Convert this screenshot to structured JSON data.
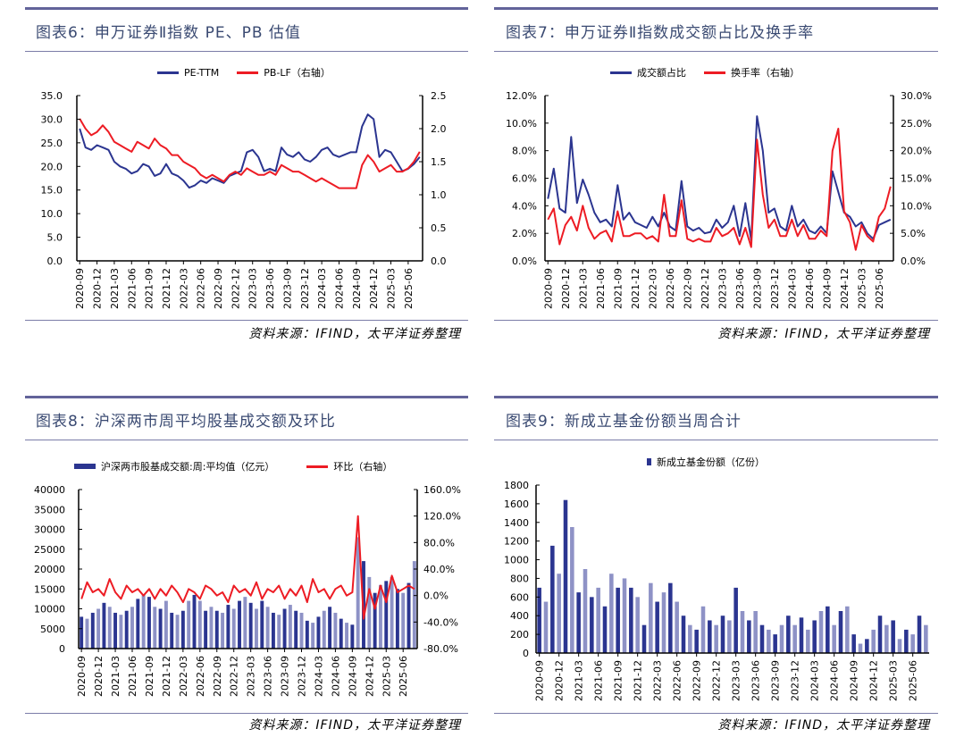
{
  "colors": {
    "navy": "#2b3590",
    "red": "#ed1c24",
    "navy_light": "#8e92c6",
    "rule": "#62639a",
    "title": "#3a4a72"
  },
  "panels": [
    {
      "title": "图表6：申万证券Ⅱ指数 PE、PB 估值",
      "legend": [
        "PE-TTM",
        "PB-LF（右轴）"
      ],
      "source": "资料来源：IFIND，太平洋证券整理"
    },
    {
      "title": "图表7：申万证券Ⅱ指数成交额占比及换手率",
      "legend": [
        "成交额占比",
        "换手率（右轴）"
      ],
      "source": "资料来源：IFIND，太平洋证券整理"
    },
    {
      "title": "图表8：沪深两市周平均股基成交额及环比",
      "legend": [
        "沪深两市股基成交额:周:平均值（亿元）",
        "环比（右轴）"
      ],
      "source": "资料来源：IFIND，太平洋证券整理"
    },
    {
      "title": "图表9：新成立基金份额当周合计",
      "legend": [
        "新成立基金份额（亿份）"
      ],
      "source": "资料来源：IFIND，太平洋证券整理"
    }
  ],
  "chart_data": [
    {
      "type": "line",
      "x_labels": [
        "2020-09",
        "2020-12",
        "2021-03",
        "2021-06",
        "2021-09",
        "2021-12",
        "2022-03",
        "2022-06",
        "2022-09",
        "2022-12",
        "2023-03",
        "2023-06",
        "2023-09",
        "2023-12",
        "2024-03",
        "2024-06",
        "2024-09",
        "2024-12",
        "2025-03",
        "2025-06"
      ],
      "y_left": {
        "ticks": [
          "35.0",
          "30.0",
          "25.0",
          "20.0",
          "15.0",
          "10.0",
          "5.0",
          "0.0"
        ],
        "range": [
          0,
          35
        ]
      },
      "y_right": {
        "ticks": [
          "2.5",
          "2.0",
          "1.5",
          "1.0",
          "0.5",
          "0.0"
        ],
        "range": [
          0,
          2.5
        ]
      },
      "series": [
        {
          "name": "PE-TTM",
          "axis": "left",
          "color": "#2b3590",
          "values": [
            28,
            24,
            23.5,
            24.5,
            24,
            23.5,
            21,
            20,
            19.5,
            18.5,
            19,
            20.5,
            20,
            18,
            18.5,
            20.5,
            18.5,
            18,
            17,
            15.5,
            16,
            17,
            16.5,
            17.5,
            17,
            16.5,
            18,
            18.5,
            19,
            23,
            23.5,
            22,
            19,
            19.5,
            19,
            24,
            22.5,
            22,
            23,
            21.5,
            21,
            22,
            23.5,
            24,
            22.5,
            22,
            22.5,
            23,
            23,
            28.5,
            31,
            30,
            22,
            23.5,
            23,
            21,
            19,
            19.5,
            20.5,
            22
          ]
        },
        {
          "name": "PB-LF（右轴）",
          "axis": "right",
          "color": "#ed1c24",
          "values": [
            2.15,
            2.0,
            1.9,
            1.95,
            2.05,
            1.95,
            1.8,
            1.75,
            1.7,
            1.65,
            1.8,
            1.75,
            1.7,
            1.85,
            1.75,
            1.7,
            1.6,
            1.6,
            1.5,
            1.45,
            1.4,
            1.3,
            1.25,
            1.3,
            1.25,
            1.2,
            1.3,
            1.35,
            1.3,
            1.4,
            1.35,
            1.3,
            1.3,
            1.35,
            1.3,
            1.45,
            1.4,
            1.35,
            1.35,
            1.3,
            1.25,
            1.2,
            1.25,
            1.2,
            1.15,
            1.1,
            1.1,
            1.1,
            1.1,
            1.45,
            1.6,
            1.5,
            1.35,
            1.4,
            1.45,
            1.35,
            1.35,
            1.4,
            1.5,
            1.65
          ]
        }
      ]
    },
    {
      "type": "line",
      "x_labels": [
        "2020-09",
        "2020-12",
        "2021-03",
        "2021-06",
        "2021-09",
        "2021-12",
        "2022-03",
        "2022-06",
        "2022-09",
        "2022-12",
        "2023-03",
        "2023-06",
        "2023-09",
        "2023-12",
        "2024-03",
        "2024-06",
        "2024-09",
        "2024-12",
        "2025-03",
        "2025-06"
      ],
      "y_left": {
        "ticks": [
          "12.0%",
          "10.0%",
          "8.0%",
          "6.0%",
          "4.0%",
          "2.0%",
          "0.0%"
        ],
        "range": [
          0,
          12
        ]
      },
      "y_right": {
        "ticks": [
          "30.0%",
          "25.0%",
          "20.0%",
          "15.0%",
          "10.0%",
          "5.0%",
          "0.0%"
        ],
        "range": [
          0,
          30
        ]
      },
      "series": [
        {
          "name": "成交额占比",
          "axis": "left",
          "color": "#2b3590",
          "values": [
            4.5,
            6.7,
            3.8,
            3.5,
            9.0,
            4.2,
            5.9,
            4.8,
            3.5,
            2.8,
            3.0,
            2.5,
            5.5,
            3.0,
            3.5,
            2.8,
            2.6,
            2.4,
            3.2,
            2.5,
            3.5,
            2.5,
            2.2,
            5.8,
            2.5,
            2.2,
            2.4,
            2.0,
            2.1,
            3.0,
            2.4,
            2.8,
            4.0,
            1.8,
            4.2,
            1.5,
            10.5,
            8.0,
            3.5,
            3.8,
            2.5,
            2.2,
            4.0,
            2.5,
            3.0,
            2.2,
            2.0,
            2.5,
            2.0,
            6.5,
            5.0,
            3.5,
            3.2,
            2.5,
            2.8,
            2.0,
            1.6,
            2.6,
            2.8,
            3.0
          ]
        },
        {
          "name": "换手率（右轴）",
          "axis": "right",
          "color": "#ed1c24",
          "values": [
            7.5,
            9.5,
            3.0,
            6.5,
            8.0,
            5.5,
            10.0,
            6.0,
            4.0,
            5.0,
            5.5,
            3.5,
            9.0,
            4.5,
            4.5,
            5.0,
            5.0,
            4.0,
            4.5,
            3.5,
            12.0,
            4.5,
            4.5,
            11.0,
            4.0,
            3.5,
            4.0,
            3.5,
            3.5,
            6.0,
            4.5,
            5.0,
            6.0,
            3.0,
            6.0,
            2.5,
            22.0,
            12.0,
            6.0,
            7.5,
            4.5,
            4.5,
            7.5,
            4.5,
            6.5,
            4.0,
            4.0,
            5.5,
            4.5,
            20.0,
            24.0,
            9.0,
            7.0,
            2.0,
            6.5,
            4.5,
            3.5,
            8.0,
            9.5,
            13.5
          ]
        }
      ]
    },
    {
      "type": "bar+line",
      "x_labels": [
        "2020-09",
        "2020-12",
        "2021-03",
        "2021-06",
        "2021-09",
        "2021-12",
        "2022-03",
        "2022-06",
        "2022-09",
        "2022-12",
        "2023-03",
        "2023-06",
        "2023-09",
        "2023-12",
        "2024-03",
        "2024-06",
        "2024-09",
        "2024-12",
        "2025-03",
        "2025-06"
      ],
      "y_left": {
        "ticks": [
          "40000",
          "35000",
          "30000",
          "25000",
          "20000",
          "15000",
          "10000",
          "5000",
          "0"
        ],
        "range": [
          0,
          40000
        ]
      },
      "y_right": {
        "ticks": [
          "160.0%",
          "120.0%",
          "80.0%",
          "40.0%",
          "0.0%",
          "-40.0%",
          "-80.0%"
        ],
        "range": [
          -80,
          160
        ]
      },
      "series": [
        {
          "name": "沪深两市股基成交额:周:平均值（亿元）",
          "kind": "bar",
          "axis": "left",
          "color": "#2b3590",
          "values": [
            8000,
            7500,
            9000,
            10000,
            11500,
            10500,
            9000,
            8500,
            9500,
            10500,
            12500,
            13500,
            13000,
            10500,
            10000,
            12000,
            9000,
            8500,
            9500,
            12000,
            13500,
            12000,
            9500,
            10500,
            9500,
            9000,
            11000,
            10000,
            12000,
            13000,
            11500,
            10000,
            12000,
            10500,
            9000,
            8500,
            10000,
            11000,
            9500,
            9000,
            7000,
            6500,
            8000,
            9500,
            10500,
            9000,
            7500,
            6500,
            6000,
            28000,
            22000,
            18000,
            14000,
            16000,
            17000,
            18000,
            15000,
            14000,
            16500,
            22000
          ]
        },
        {
          "name": "环比（右轴）",
          "kind": "line",
          "axis": "right",
          "color": "#ed1c24",
          "values": [
            -5,
            20,
            5,
            10,
            0,
            25,
            5,
            -5,
            15,
            5,
            10,
            0,
            10,
            -5,
            10,
            0,
            15,
            5,
            -10,
            10,
            5,
            -5,
            15,
            10,
            0,
            5,
            -10,
            15,
            5,
            10,
            0,
            20,
            -5,
            10,
            5,
            15,
            -5,
            10,
            0,
            15,
            -10,
            25,
            5,
            10,
            -5,
            10,
            15,
            0,
            5,
            120,
            -35,
            10,
            -20,
            15,
            -10,
            30,
            5,
            10,
            15,
            10
          ]
        }
      ]
    },
    {
      "type": "bar",
      "x_labels": [
        "2020-09",
        "2020-12",
        "2021-03",
        "2021-06",
        "2021-09",
        "2021-12",
        "2022-03",
        "2022-06",
        "2022-09",
        "2022-12",
        "2023-03",
        "2023-06",
        "2023-09",
        "2023-12",
        "2024-03",
        "2024-06",
        "2024-09",
        "2024-12",
        "2025-03",
        "2025-06"
      ],
      "y_left": {
        "ticks": [
          "1800",
          "1600",
          "1400",
          "1200",
          "1000",
          "800",
          "600",
          "400",
          "200",
          "0"
        ],
        "range": [
          0,
          1800
        ]
      },
      "series": [
        {
          "name": "新成立基金份额（亿份）",
          "kind": "bar",
          "axis": "left",
          "color": "#2b3590",
          "values": [
            700,
            550,
            1150,
            850,
            1640,
            1350,
            650,
            900,
            600,
            700,
            500,
            850,
            700,
            800,
            700,
            600,
            300,
            750,
            550,
            650,
            750,
            550,
            400,
            300,
            250,
            500,
            350,
            300,
            400,
            350,
            700,
            450,
            350,
            450,
            300,
            250,
            200,
            300,
            400,
            300,
            380,
            250,
            350,
            450,
            500,
            300,
            450,
            500,
            200,
            100,
            150,
            250,
            400,
            300,
            350,
            150,
            250,
            200,
            400,
            300
          ]
        }
      ]
    }
  ]
}
